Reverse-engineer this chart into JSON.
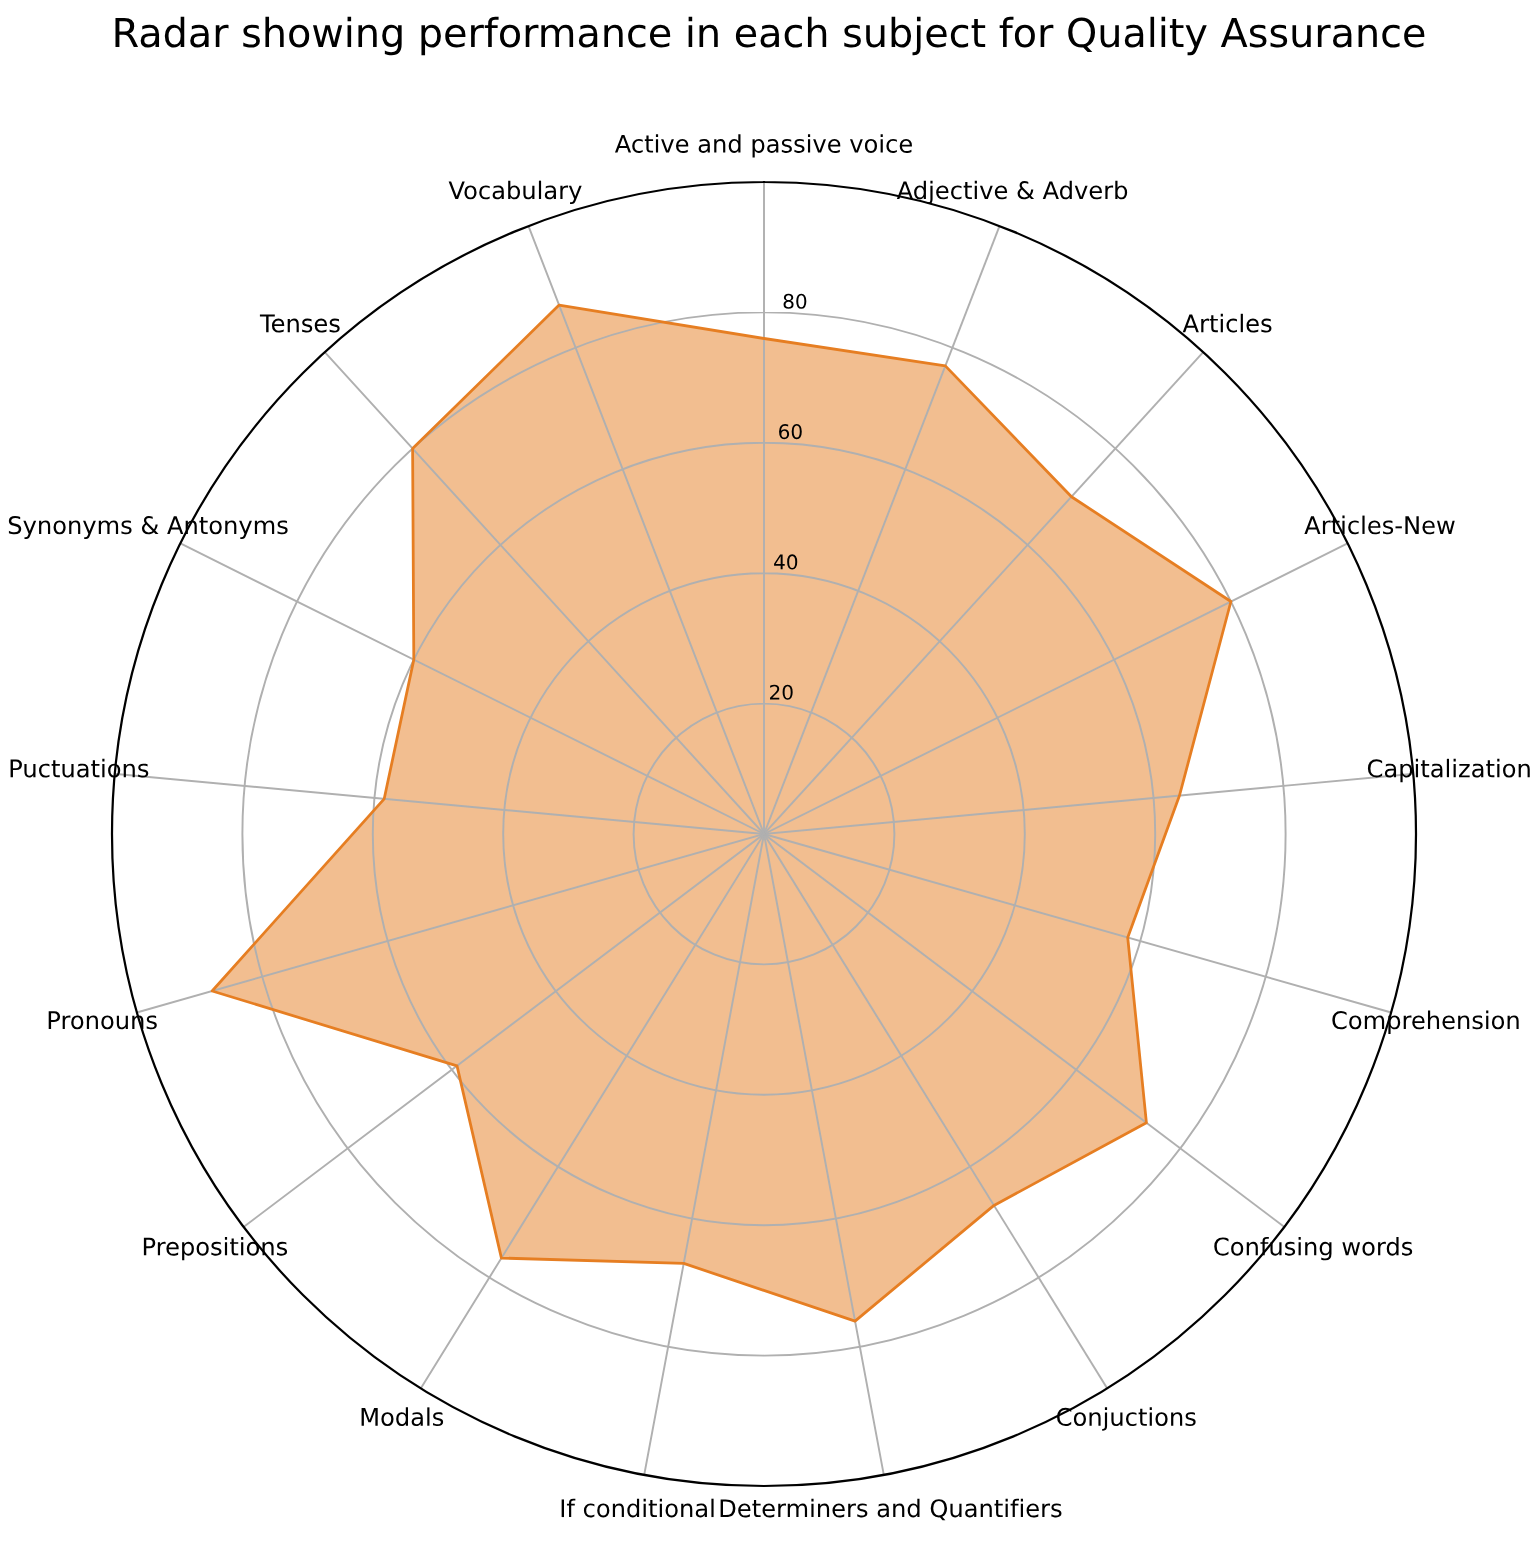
{
  "chart_data": {
    "type": "radar",
    "title": "Radar showing performance in each subject for Quality Assurance",
    "categories": [
      "Active and passive voice",
      "Adjective & Adverb",
      "Articles",
      "Articles-New",
      "Capitalization",
      "Comprehension",
      "Confusing words",
      "Conjuctions",
      "Determiners and Quantifiers",
      "If conditional",
      "Modals",
      "Prepositions",
      "Pronouns",
      "Puctuations",
      "Synonyms & Antonyms",
      "Tenses",
      "Vocabulary"
    ],
    "series": [
      {
        "color": "#e67e22",
        "values": [
          76,
          77,
          70,
          80,
          64,
          58,
          73.5,
          67,
          76,
          67,
          76.5,
          59,
          88,
          58.5,
          60,
          80,
          87
        ]
      }
    ],
    "ylim": [
      0,
      100
    ],
    "yticks": [
      20,
      40,
      60,
      80
    ],
    "grid": true
  }
}
